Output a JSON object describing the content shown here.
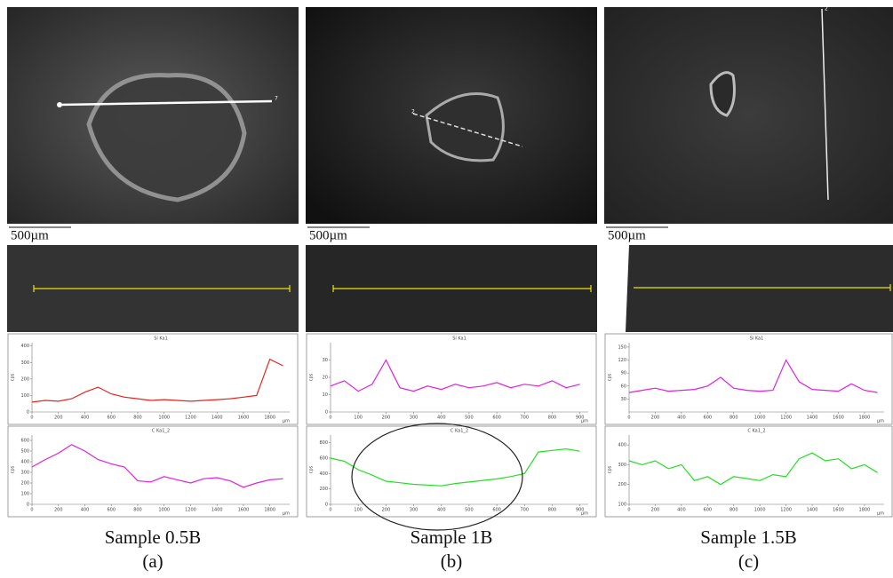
{
  "chart_data": [
    {
      "type": "line",
      "title": "Si Ka1",
      "y_label": "cps",
      "x_unit": "µm",
      "x": [
        0,
        100,
        200,
        300,
        400,
        500,
        600,
        700,
        800,
        900,
        1000,
        1100,
        1200,
        1300,
        1400,
        1500,
        1600,
        1700,
        1800,
        1900
      ],
      "series": [
        {
          "color": "#e8231f",
          "values": [
            60,
            70,
            65,
            80,
            120,
            150,
            110,
            90,
            80,
            70,
            75,
            70,
            65,
            70,
            75,
            80,
            90,
            100,
            320,
            280
          ]
        }
      ],
      "xlim": [
        0,
        1950
      ],
      "xticks": [
        0,
        200,
        400,
        600,
        800,
        1000,
        1200,
        1400,
        1600,
        1800
      ],
      "ylim": [
        0,
        420
      ],
      "yticks": [
        0,
        100,
        200,
        300,
        400
      ]
    },
    {
      "type": "line",
      "title": "C Ka1_2",
      "y_label": "cps",
      "x_unit": "µm",
      "x": [
        0,
        100,
        200,
        300,
        400,
        500,
        600,
        700,
        800,
        900,
        1000,
        1100,
        1200,
        1300,
        1400,
        1500,
        1600,
        1700,
        1800,
        1900
      ],
      "series": [
        {
          "color": "#e020e0",
          "values": [
            350,
            420,
            480,
            560,
            500,
            420,
            380,
            350,
            220,
            210,
            260,
            230,
            200,
            240,
            250,
            220,
            160,
            200,
            230,
            240
          ]
        }
      ],
      "xlim": [
        0,
        1950
      ],
      "xticks": [
        0,
        200,
        400,
        600,
        800,
        1000,
        1200,
        1400,
        1600,
        1800
      ],
      "ylim": [
        0,
        650
      ],
      "yticks": [
        0,
        100,
        200,
        300,
        400,
        500,
        600
      ]
    },
    {
      "type": "line",
      "title": "Si Ka1",
      "y_label": "cps",
      "x_unit": "µm",
      "x": [
        0,
        50,
        100,
        150,
        200,
        250,
        300,
        350,
        400,
        450,
        500,
        550,
        600,
        650,
        700,
        750,
        800,
        850,
        900
      ],
      "series": [
        {
          "color": "#e020e0",
          "values": [
            15,
            18,
            12,
            16,
            30,
            14,
            12,
            15,
            13,
            16,
            14,
            15,
            17,
            14,
            16,
            15,
            18,
            14,
            16
          ]
        }
      ],
      "xlim": [
        0,
        930
      ],
      "xticks": [
        0,
        100,
        200,
        300,
        400,
        500,
        600,
        700,
        800,
        900
      ],
      "ylim": [
        0,
        40
      ],
      "yticks": [
        0,
        10,
        20,
        30
      ]
    },
    {
      "type": "line",
      "title": "C Ka1_2",
      "y_label": "cps",
      "x_unit": "µm",
      "x": [
        0,
        50,
        100,
        150,
        200,
        250,
        300,
        350,
        400,
        450,
        500,
        550,
        600,
        650,
        700,
        750,
        800,
        850,
        900
      ],
      "series": [
        {
          "color": "#22e022",
          "values": [
            600,
            560,
            450,
            380,
            300,
            280,
            260,
            250,
            240,
            270,
            290,
            310,
            330,
            360,
            400,
            680,
            700,
            720,
            690
          ]
        }
      ],
      "xlim": [
        0,
        930
      ],
      "xticks": [
        0,
        100,
        200,
        300,
        400,
        500,
        600,
        700,
        800,
        900
      ],
      "ylim": [
        0,
        900
      ],
      "yticks": [
        0,
        200,
        400,
        600,
        800
      ]
    },
    {
      "type": "line",
      "title": "Si Ka1",
      "y_label": "cps",
      "x_unit": "µm",
      "x": [
        0,
        100,
        200,
        300,
        400,
        500,
        600,
        700,
        800,
        900,
        1000,
        1100,
        1200,
        1300,
        1400,
        1500,
        1600,
        1700,
        1800,
        1900
      ],
      "series": [
        {
          "color": "#e020e0",
          "values": [
            45,
            50,
            55,
            48,
            50,
            52,
            60,
            80,
            55,
            50,
            48,
            50,
            120,
            70,
            52,
            50,
            48,
            65,
            50,
            45
          ]
        }
      ],
      "xlim": [
        0,
        1950
      ],
      "xticks": [
        0,
        200,
        400,
        600,
        800,
        1000,
        1200,
        1400,
        1600,
        1800
      ],
      "ylim": [
        0,
        160
      ],
      "yticks": [
        30,
        60,
        90,
        120,
        150
      ]
    },
    {
      "type": "line",
      "title": "C Ka1_2",
      "y_label": "cps",
      "x_unit": "µm",
      "x": [
        0,
        100,
        200,
        300,
        400,
        500,
        600,
        700,
        800,
        900,
        1000,
        1100,
        1200,
        1300,
        1400,
        1500,
        1600,
        1700,
        1800,
        1900
      ],
      "series": [
        {
          "color": "#22e022",
          "values": [
            320,
            300,
            320,
            280,
            300,
            220,
            240,
            200,
            240,
            230,
            220,
            250,
            240,
            330,
            360,
            320,
            330,
            280,
            300,
            260
          ]
        }
      ],
      "xlim": [
        0,
        1950
      ],
      "xticks": [
        0,
        200,
        400,
        600,
        800,
        1000,
        1200,
        1400,
        1600,
        1800
      ],
      "ylim": [
        100,
        450
      ],
      "yticks": [
        100,
        200,
        300,
        400
      ]
    }
  ],
  "panels": [
    {
      "scale_label": "500µm",
      "line_label": "7",
      "caption": "Sample 0.5B",
      "letter": "(a)"
    },
    {
      "scale_label": "500µm",
      "line_label": "2",
      "caption": "Sample 1B",
      "letter": "(b)"
    },
    {
      "scale_label": "500µm",
      "line_label": "2",
      "caption": "Sample 1.5B",
      "letter": "(c)"
    }
  ]
}
